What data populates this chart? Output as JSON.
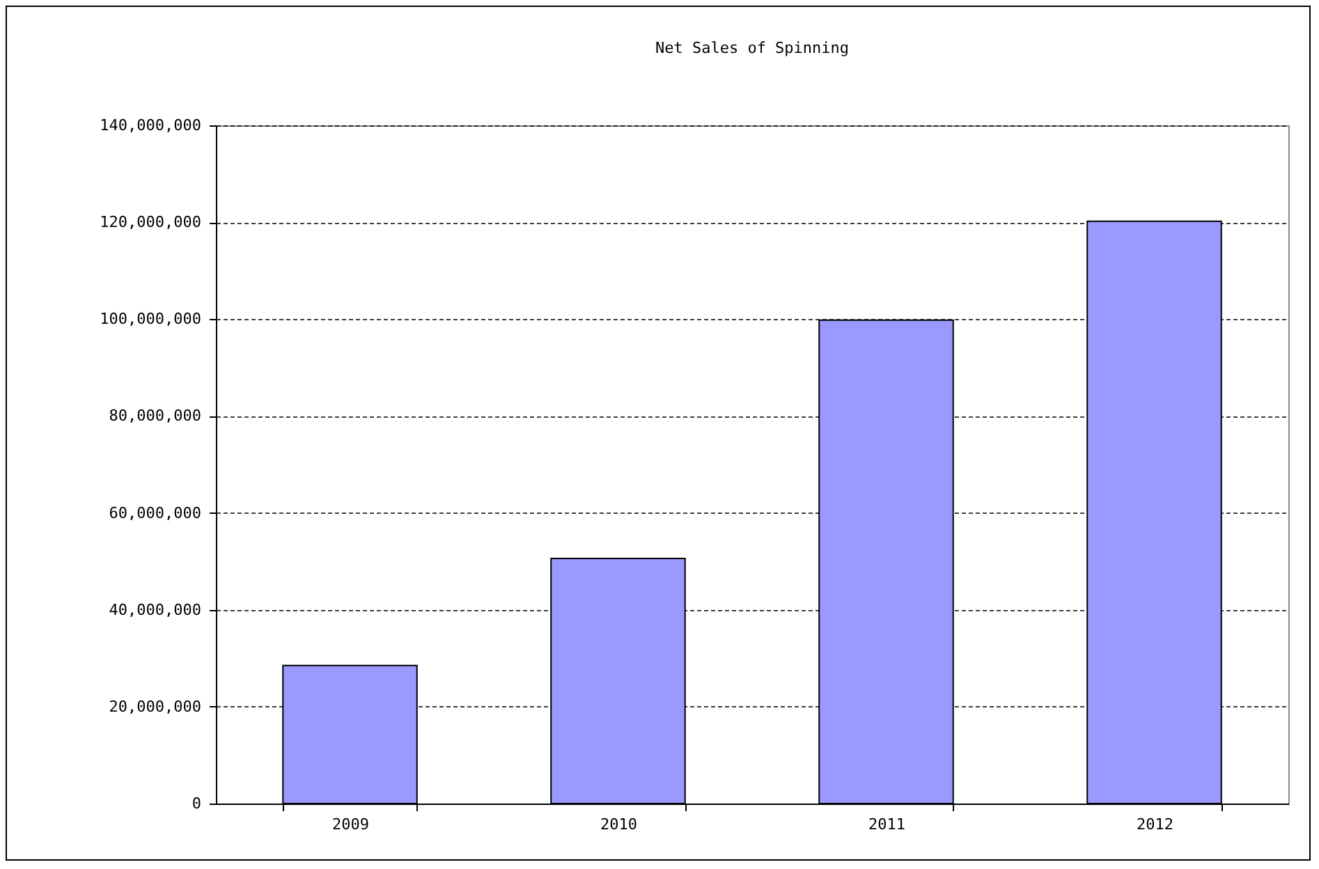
{
  "chart_data": {
    "type": "bar",
    "title": "Net Sales of Spinning",
    "categories": [
      "2009",
      "2010",
      "2011",
      "2012"
    ],
    "values": [
      28500000,
      50600000,
      99800000,
      120200000
    ],
    "color": "#9999ff",
    "ylim": [
      0,
      140000000
    ],
    "yticks": [
      0,
      {
        "value": 20000000,
        "label": "20,000,000"
      },
      {
        "value": 40000000,
        "label": "40,000,000"
      },
      {
        "value": 60000000,
        "label": "60,000,000"
      },
      {
        "value": 80000000,
        "label": "80,000,000"
      },
      {
        "value": 100000000,
        "label": "100,000,000"
      },
      {
        "value": 120000000,
        "label": "120,000,000"
      },
      {
        "value": 140000000,
        "label": "140,000,000"
      }
    ],
    "grid": "y"
  }
}
